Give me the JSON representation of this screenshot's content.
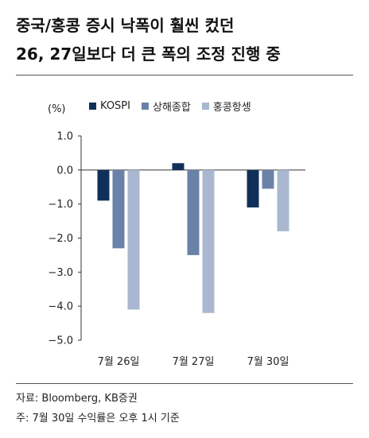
{
  "header": {
    "title_line1": "중국/홍콩 증시 낙폭이 훨씬 컸던",
    "title_line2": "26, 27일보다 더 큰 폭의 조정 진행 중"
  },
  "footer": {
    "source": "자료: Bloomberg, KB증권",
    "note": "주: 7월 30일 수익률은 오후 1시 기준"
  },
  "chart_data": {
    "type": "bar",
    "unit_label": "(%)",
    "categories": [
      "7월 26일",
      "7월 27일",
      "7월 30일"
    ],
    "series": [
      {
        "name": "KOSPI",
        "color": "#10305a",
        "values": [
          -0.9,
          0.2,
          -1.1
        ]
      },
      {
        "name": "상해종합",
        "color": "#6a82a8",
        "values": [
          -2.3,
          -2.5,
          -0.55
        ]
      },
      {
        "name": "홍콩항셍",
        "color": "#a9b8d0",
        "values": [
          -4.1,
          -4.2,
          -1.8
        ]
      }
    ],
    "ylim": [
      -5.0,
      1.0
    ],
    "yticks": [
      "1.0",
      "0.0",
      "-1.0",
      "-2.0",
      "-3.0",
      "-4.0",
      "-5.0"
    ],
    "grid": false,
    "legend_position": "top"
  }
}
